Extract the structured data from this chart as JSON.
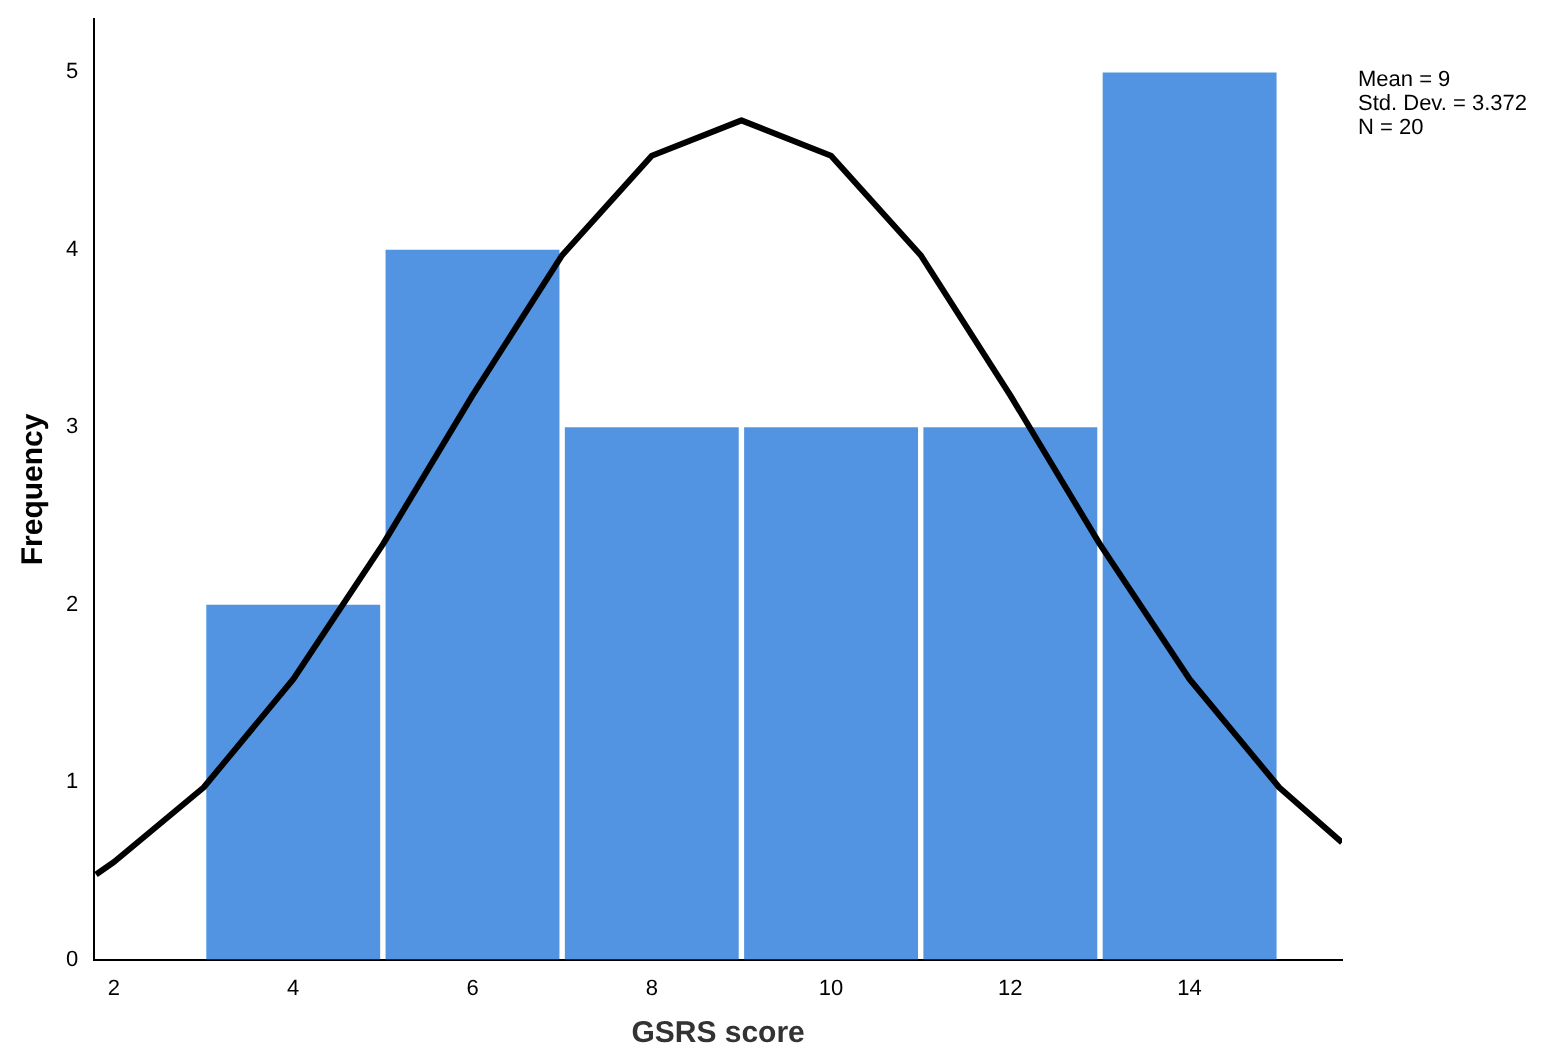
{
  "chart_data": {
    "type": "histogram",
    "xlabel": "GSRS score",
    "ylabel": "Frequency",
    "series": [
      {
        "bins": [
          3,
          5,
          7,
          9,
          11,
          13,
          15
        ],
        "values": [
          2,
          4,
          3,
          3,
          3,
          5
        ],
        "color": "#5294e2"
      },
      {
        "type": "line",
        "x": [
          1.8,
          2,
          3,
          4,
          5,
          6,
          7,
          8,
          9,
          10,
          11,
          12,
          13,
          14,
          15,
          15.7
        ],
        "values": [
          0.48,
          0.55,
          0.97,
          1.58,
          2.34,
          3.18,
          3.97,
          4.53,
          4.73,
          4.53,
          3.97,
          3.18,
          2.34,
          1.58,
          0.97,
          0.66
        ],
        "color": "#000000"
      }
    ],
    "xlim": [
      1.78,
      15.7
    ],
    "xticks": [
      2,
      4,
      6,
      8,
      10,
      12,
      14
    ],
    "ylim": [
      0,
      5.3
    ],
    "yticks": [
      0,
      1,
      2,
      3,
      4,
      5
    ],
    "grid": false,
    "legend": false,
    "marker": "none",
    "annotations": [
      "Mean = 9",
      "Std. Dev. = 3.372",
      "N = 20"
    ]
  }
}
